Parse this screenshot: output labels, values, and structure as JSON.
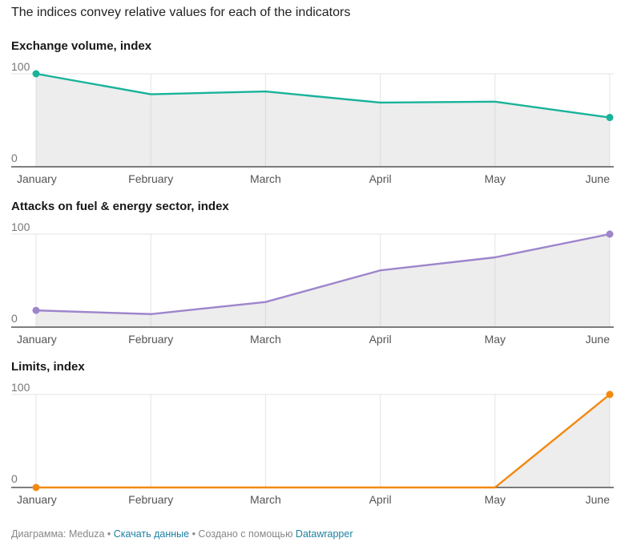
{
  "subtitle": "The indices convey relative values for each of the indicators",
  "footer": {
    "prefix": "Диаграмма: Meduza",
    "sep1": " • ",
    "download_link": "Скачать данные",
    "sep2": " • Создано с помощью ",
    "tool_link": "Datawrapper"
  },
  "chart_data": [
    {
      "type": "area",
      "title": "Exchange volume, index",
      "categories": [
        "January",
        "February",
        "March",
        "April",
        "May",
        "June"
      ],
      "values": [
        100,
        78,
        81,
        69,
        70,
        53
      ],
      "ylim": [
        0,
        100
      ],
      "yticks": [
        "0",
        "100"
      ],
      "color": "#18b39a",
      "markers": "first-last",
      "grid": true
    },
    {
      "type": "area",
      "title": "Attacks on fuel & energy sector, index",
      "categories": [
        "January",
        "February",
        "March",
        "April",
        "May",
        "June"
      ],
      "values": [
        18,
        14,
        27,
        61,
        75,
        100
      ],
      "ylim": [
        0,
        100
      ],
      "yticks": [
        "0",
        "100"
      ],
      "color": "#9d85cc",
      "markers": "first-last",
      "grid": true
    },
    {
      "type": "area",
      "title": "Limits, index",
      "categories": [
        "January",
        "February",
        "March",
        "April",
        "May",
        "June"
      ],
      "values": [
        0,
        0,
        0,
        0,
        0,
        100
      ],
      "ylim": [
        0,
        100
      ],
      "yticks": [
        "0",
        "100"
      ],
      "color": "#f2890f",
      "markers": "first-last",
      "grid": true
    }
  ]
}
